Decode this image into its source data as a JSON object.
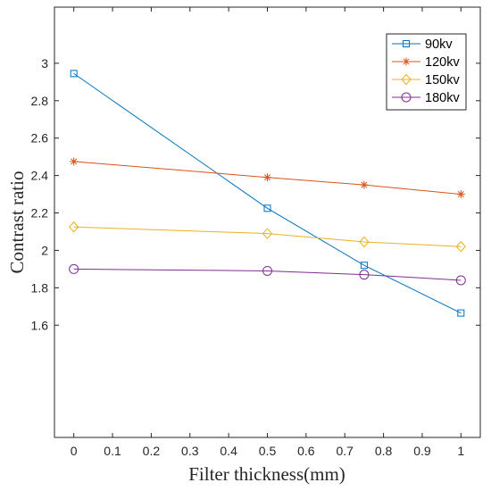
{
  "chart_data": {
    "type": "line",
    "title": "",
    "xlabel": "Filter thickness(mm)",
    "ylabel": "Contrast ratio",
    "xlim": [
      -0.05,
      1.05
    ],
    "ylim": [
      1.0,
      3.3
    ],
    "xticks": [
      0,
      0.1,
      0.2,
      0.3,
      0.4,
      0.5,
      0.6,
      0.7,
      0.8,
      0.9,
      1
    ],
    "xtick_labels": [
      "0",
      "0.1",
      "0.2",
      "0.3",
      "0.4",
      "0.5",
      "0.6",
      "0.7",
      "0.8",
      "0.9",
      "1"
    ],
    "yticks": [
      1.6,
      1.8,
      2.0,
      2.2,
      2.4,
      2.6,
      2.8,
      3.0
    ],
    "ytick_labels": [
      "1.6",
      "1.8",
      "2",
      "2.2",
      "2.4",
      "2.6",
      "2.8",
      "3"
    ],
    "grid": false,
    "legend_position": "top-right",
    "x": [
      0,
      0.5,
      0.75,
      1
    ],
    "series": [
      {
        "name": "90kv",
        "values": [
          2.945,
          2.225,
          1.92,
          1.665
        ],
        "color": "#0072BD",
        "marker": "square"
      },
      {
        "name": "120kv",
        "values": [
          2.475,
          2.39,
          2.35,
          2.3
        ],
        "color": "#D95319",
        "marker": "asterisk"
      },
      {
        "name": "150kv",
        "values": [
          2.125,
          2.09,
          2.045,
          2.02
        ],
        "color": "#EDB120",
        "marker": "diamond"
      },
      {
        "name": "180kv",
        "values": [
          1.9,
          1.89,
          1.87,
          1.84
        ],
        "color": "#7E2F8E",
        "marker": "circle"
      }
    ]
  }
}
